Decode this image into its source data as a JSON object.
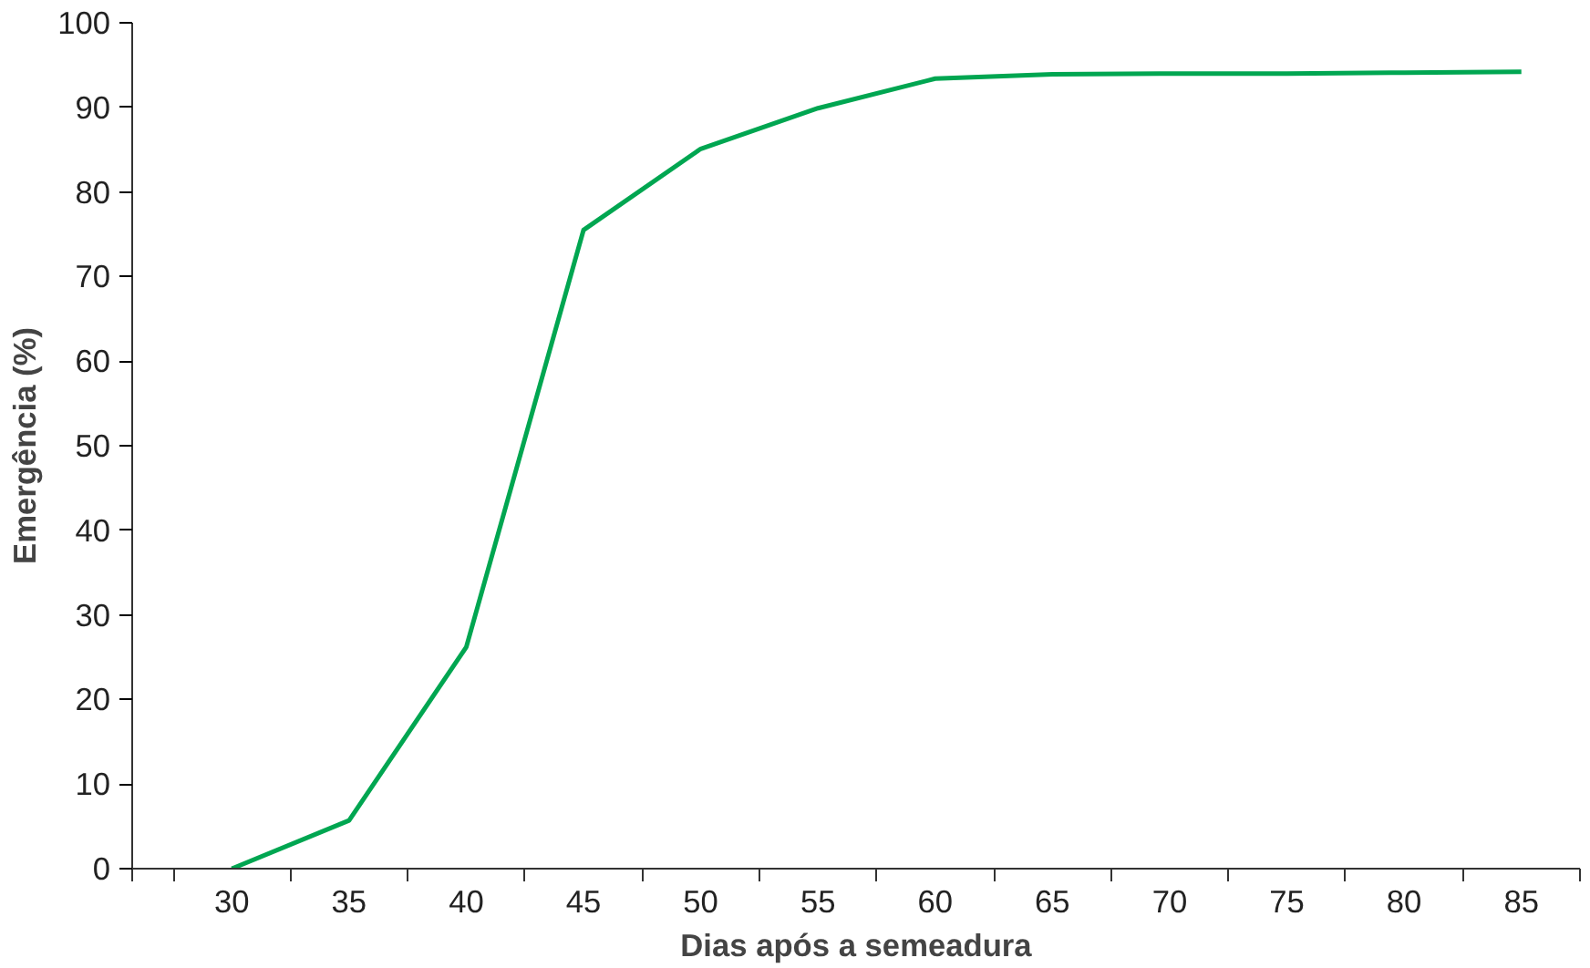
{
  "chart_data": {
    "type": "line",
    "xlabel": "Dias após a semeadura",
    "ylabel": "Emergência (%)",
    "categories": [
      "30",
      "35",
      "40",
      "45",
      "50",
      "55",
      "60",
      "65",
      "70",
      "75",
      "80",
      "85"
    ],
    "series": [
      {
        "color": "#00a651",
        "values": [
          0,
          5.7,
          26.2,
          75.5,
          85.1,
          89.9,
          93.4,
          93.9,
          94.0,
          94.0,
          94.1,
          94.2
        ]
      }
    ],
    "ylim": [
      0,
      100
    ],
    "yticks": [
      0,
      10,
      20,
      30,
      40,
      50,
      60,
      70,
      80,
      90,
      100
    ],
    "grid": false,
    "marker": "none",
    "line_style": "solid"
  }
}
